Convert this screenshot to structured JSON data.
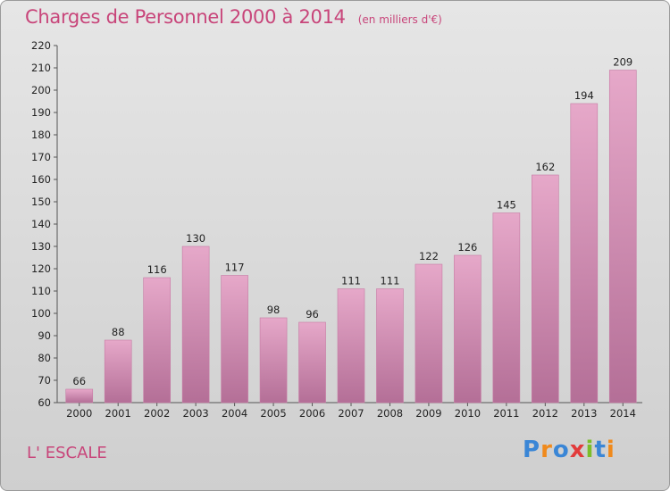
{
  "header": {
    "title": "Charges de Personnel 2000 à 2014",
    "subtitle": "(en milliers d'€)"
  },
  "commune": "L' ESCALE",
  "logo": {
    "letters": [
      "P",
      "r",
      "o",
      "x",
      "i",
      "t",
      "i"
    ],
    "colors": [
      "#3a86d6",
      "#f08a1c",
      "#3a86d6",
      "#e23b3b",
      "#7cbd2a",
      "#3a86d6",
      "#f08a1c"
    ]
  },
  "colors": {
    "bar": "#d889b3",
    "title": "#c8457a"
  },
  "chart_data": {
    "type": "bar",
    "title": "Charges de Personnel 2000 à 2014",
    "subtitle": "(en milliers d'€)",
    "categories": [
      "2000",
      "2001",
      "2002",
      "2003",
      "2004",
      "2005",
      "2006",
      "2007",
      "2008",
      "2009",
      "2010",
      "2011",
      "2012",
      "2013",
      "2014"
    ],
    "values": [
      66,
      88,
      116,
      130,
      117,
      98,
      96,
      111,
      111,
      122,
      126,
      145,
      162,
      194,
      209
    ],
    "ylim": [
      60,
      220
    ],
    "yticks": [
      60,
      70,
      80,
      90,
      100,
      110,
      120,
      130,
      140,
      150,
      160,
      170,
      180,
      190,
      200,
      210,
      220
    ],
    "grid": false,
    "legend": "none"
  }
}
